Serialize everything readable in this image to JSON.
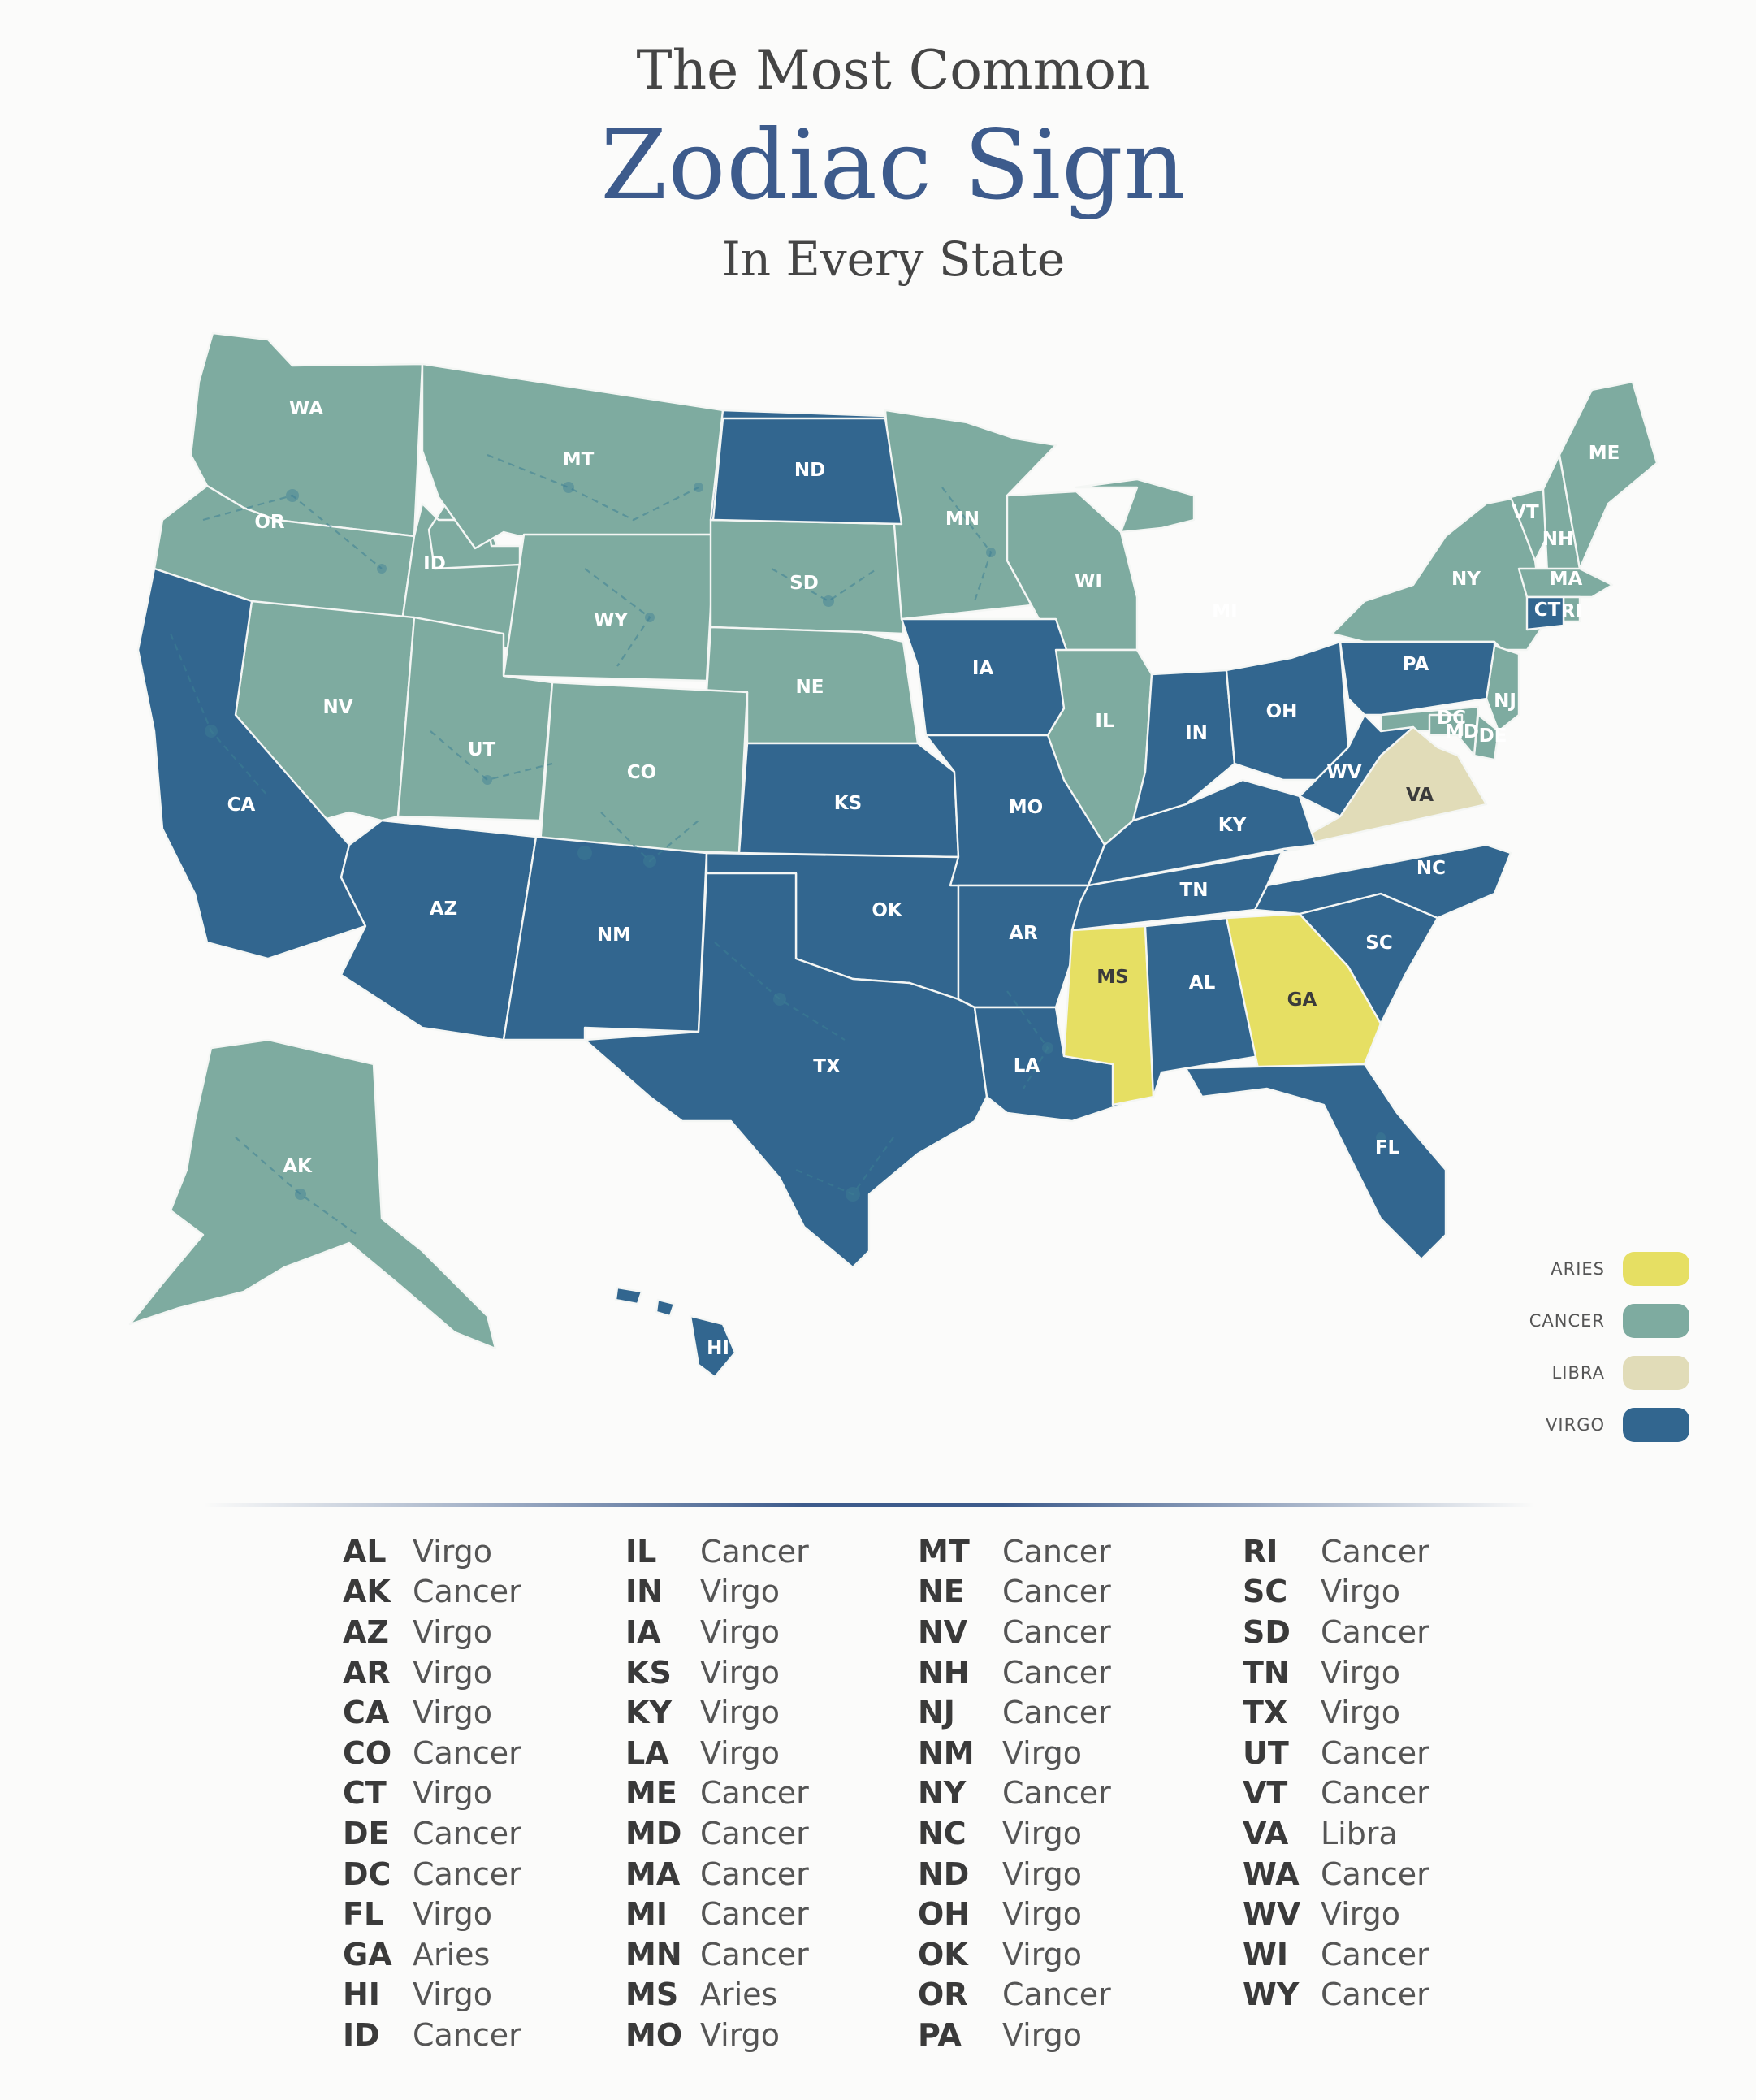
{
  "title": {
    "line1": "The Most Common",
    "line2": "Zodiac Sign",
    "line3": "In Every State"
  },
  "colors": {
    "Aries": "#e6df63",
    "Cancer": "#7eaba0",
    "Libra": "#e1dcb8",
    "Virgo": "#32668f",
    "title_accent": "#3d5b8c",
    "constellation": "#3d7f94"
  },
  "legend": [
    {
      "label": "ARIES",
      "sign": "Aries"
    },
    {
      "label": "CANCER",
      "sign": "Cancer"
    },
    {
      "label": "LIBRA",
      "sign": "Libra"
    },
    {
      "label": "VIRGO",
      "sign": "Virgo"
    }
  ],
  "map_labels": [
    "WA",
    "OR",
    "MT",
    "ID",
    "ND",
    "MN",
    "SD",
    "WY",
    "WI",
    "MI",
    "NY",
    "VT",
    "NH",
    "ME",
    "MA",
    "CT",
    "RI",
    "IA",
    "NE",
    "NV",
    "UT",
    "CO",
    "CA",
    "IL",
    "IN",
    "OH",
    "PA",
    "NJ",
    "DE",
    "MD",
    "DC",
    "KS",
    "MO",
    "KY",
    "WV",
    "VA",
    "NC",
    "TN",
    "OK",
    "AR",
    "AZ",
    "NM",
    "MS",
    "AL",
    "GA",
    "SC",
    "TX",
    "LA",
    "FL",
    "AK",
    "HI"
  ],
  "states": [
    {
      "abbr": "AL",
      "sign": "Virgo"
    },
    {
      "abbr": "AK",
      "sign": "Cancer"
    },
    {
      "abbr": "AZ",
      "sign": "Virgo"
    },
    {
      "abbr": "AR",
      "sign": "Virgo"
    },
    {
      "abbr": "CA",
      "sign": "Virgo"
    },
    {
      "abbr": "CO",
      "sign": "Cancer"
    },
    {
      "abbr": "CT",
      "sign": "Virgo"
    },
    {
      "abbr": "DE",
      "sign": "Cancer"
    },
    {
      "abbr": "DC",
      "sign": "Cancer"
    },
    {
      "abbr": "FL",
      "sign": "Virgo"
    },
    {
      "abbr": "GA",
      "sign": "Aries"
    },
    {
      "abbr": "HI",
      "sign": "Virgo"
    },
    {
      "abbr": "ID",
      "sign": "Cancer"
    },
    {
      "abbr": "IL",
      "sign": "Cancer"
    },
    {
      "abbr": "IN",
      "sign": "Virgo"
    },
    {
      "abbr": "IA",
      "sign": "Virgo"
    },
    {
      "abbr": "KS",
      "sign": "Virgo"
    },
    {
      "abbr": "KY",
      "sign": "Virgo"
    },
    {
      "abbr": "LA",
      "sign": "Virgo"
    },
    {
      "abbr": "ME",
      "sign": "Cancer"
    },
    {
      "abbr": "MD",
      "sign": "Cancer"
    },
    {
      "abbr": "MA",
      "sign": "Cancer"
    },
    {
      "abbr": "MI",
      "sign": "Cancer"
    },
    {
      "abbr": "MN",
      "sign": "Cancer"
    },
    {
      "abbr": "MS",
      "sign": "Aries"
    },
    {
      "abbr": "MO",
      "sign": "Virgo"
    },
    {
      "abbr": "MT",
      "sign": "Cancer"
    },
    {
      "abbr": "NE",
      "sign": "Cancer"
    },
    {
      "abbr": "NV",
      "sign": "Cancer"
    },
    {
      "abbr": "NH",
      "sign": "Cancer"
    },
    {
      "abbr": "NJ",
      "sign": "Cancer"
    },
    {
      "abbr": "NM",
      "sign": "Virgo"
    },
    {
      "abbr": "NY",
      "sign": "Cancer"
    },
    {
      "abbr": "NC",
      "sign": "Virgo"
    },
    {
      "abbr": "ND",
      "sign": "Virgo"
    },
    {
      "abbr": "OH",
      "sign": "Virgo"
    },
    {
      "abbr": "OK",
      "sign": "Virgo"
    },
    {
      "abbr": "OR",
      "sign": "Cancer"
    },
    {
      "abbr": "PA",
      "sign": "Virgo"
    },
    {
      "abbr": "RI",
      "sign": "Cancer"
    },
    {
      "abbr": "SC",
      "sign": "Virgo"
    },
    {
      "abbr": "SD",
      "sign": "Cancer"
    },
    {
      "abbr": "TN",
      "sign": "Virgo"
    },
    {
      "abbr": "TX",
      "sign": "Virgo"
    },
    {
      "abbr": "UT",
      "sign": "Cancer"
    },
    {
      "abbr": "VT",
      "sign": "Cancer"
    },
    {
      "abbr": "VA",
      "sign": "Libra"
    },
    {
      "abbr": "WA",
      "sign": "Cancer"
    },
    {
      "abbr": "WV",
      "sign": "Virgo"
    },
    {
      "abbr": "WI",
      "sign": "Cancer"
    },
    {
      "abbr": "WY",
      "sign": "Cancer"
    }
  ]
}
